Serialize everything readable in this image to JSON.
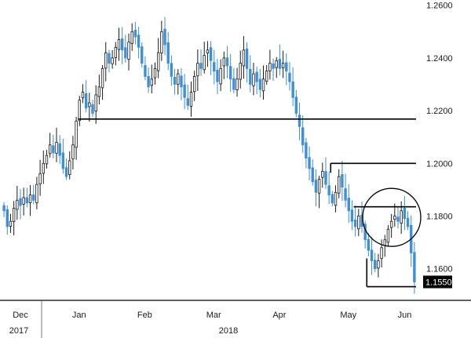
{
  "chart_data": {
    "type": "candlestick",
    "x_axis": {
      "months": [
        "Dec",
        "Jan",
        "Feb",
        "Mar",
        "Apr",
        "May",
        "Jun"
      ],
      "years": [
        "2017",
        "2018"
      ]
    },
    "y_axis": {
      "ylim": [
        1.148,
        1.262
      ],
      "ticks": [
        "1.1600",
        "1.1800",
        "1.2000",
        "1.2200",
        "1.2400",
        "1.2600"
      ],
      "tick_values": [
        1.16,
        1.18,
        1.2,
        1.22,
        1.24,
        1.26
      ]
    },
    "last_price": {
      "label": "1.1550",
      "value": 1.155
    },
    "colors": {
      "up": "#1a1a1a",
      "down": "#3d8fd9",
      "last_badge": "#000000",
      "axis": "#000000"
    },
    "closes": [
      1.182,
      1.176,
      1.178,
      1.183,
      1.186,
      1.184,
      1.187,
      1.185,
      1.188,
      1.186,
      1.192,
      1.196,
      1.2,
      1.203,
      1.207,
      1.204,
      1.208,
      1.203,
      1.198,
      1.195,
      1.201,
      1.207,
      1.216,
      1.224,
      1.227,
      1.221,
      1.223,
      1.219,
      1.226,
      1.229,
      1.236,
      1.242,
      1.238,
      1.24,
      1.244,
      1.247,
      1.243,
      1.24,
      1.246,
      1.25,
      1.248,
      1.244,
      1.238,
      1.233,
      1.229,
      1.232,
      1.236,
      1.242,
      1.25,
      1.245,
      1.238,
      1.233,
      1.23,
      1.234,
      1.229,
      1.225,
      1.222,
      1.227,
      1.233,
      1.238,
      1.236,
      1.241,
      1.243,
      1.239,
      1.235,
      1.231,
      1.236,
      1.24,
      1.237,
      1.232,
      1.228,
      1.232,
      1.238,
      1.243,
      1.236,
      1.23,
      1.234,
      1.231,
      1.228,
      1.232,
      1.235,
      1.238,
      1.236,
      1.239,
      1.236,
      1.238,
      1.235,
      1.231,
      1.225,
      1.219,
      1.214,
      1.207,
      1.202,
      1.198,
      1.193,
      1.189,
      1.194,
      1.197,
      1.192,
      1.188,
      1.185,
      1.189,
      1.195,
      1.191,
      1.186,
      1.182,
      1.178,
      1.176,
      1.18,
      1.176,
      1.171,
      1.167,
      1.163,
      1.16,
      1.163,
      1.168,
      1.171,
      1.175,
      1.178,
      1.18,
      1.178,
      1.182,
      1.179,
      1.176,
      1.166,
      1.155
    ],
    "annotations": [
      {
        "type": "hline",
        "y": 1.2168,
        "x_from_index": 23,
        "x_to_index": 125,
        "label": ""
      },
      {
        "type": "hline",
        "y": 1.2,
        "x_from_index": 100,
        "x_to_index": 125,
        "label": ""
      },
      {
        "type": "hline",
        "y": 1.1835,
        "x_from_index": 107,
        "x_to_index": 125,
        "label": ""
      },
      {
        "type": "hline",
        "y": 1.1532,
        "x_from_index": 111,
        "x_to_index": 125,
        "label": ""
      },
      {
        "type": "circle",
        "center_index": 120,
        "center_y": 1.1795,
        "label": ""
      }
    ],
    "month_start_indices": {
      "Jan": 20,
      "Feb": 40,
      "Mar": 61,
      "Apr": 81,
      "May": 102,
      "Jun": 123
    }
  }
}
